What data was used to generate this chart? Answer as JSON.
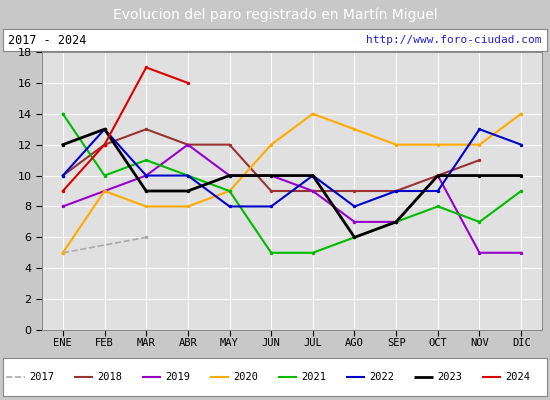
{
  "title": "Evolucion del paro registrado en Martín Miguel",
  "subtitle_left": "2017 - 2024",
  "subtitle_right": "http://www.foro-ciudad.com",
  "months": [
    "ENE",
    "FEB",
    "MAR",
    "ABR",
    "MAY",
    "JUN",
    "JUL",
    "AGO",
    "SEP",
    "OCT",
    "NOV",
    "DIC"
  ],
  "series": {
    "2017": {
      "data": [
        5.0,
        null,
        6.0,
        null,
        null,
        null,
        null,
        null,
        null,
        null,
        null,
        null
      ],
      "color": "#aaaaaa",
      "linewidth": 1.2,
      "linestyle": "--"
    },
    "2018": {
      "data": [
        10.0,
        12.0,
        13.0,
        12.0,
        12.0,
        9.0,
        9.0,
        9.0,
        9.0,
        10.0,
        11.0,
        null
      ],
      "color": "#993333",
      "linewidth": 1.5,
      "linestyle": "-"
    },
    "2019": {
      "data": [
        8.0,
        9.0,
        10.0,
        12.0,
        10.0,
        10.0,
        9.0,
        7.0,
        7.0,
        10.0,
        5.0,
        5.0
      ],
      "color": "#9900cc",
      "linewidth": 1.5,
      "linestyle": "-"
    },
    "2020": {
      "data": [
        5.0,
        9.0,
        8.0,
        8.0,
        9.0,
        12.0,
        14.0,
        13.0,
        12.0,
        12.0,
        12.0,
        14.0
      ],
      "color": "#ffaa00",
      "linewidth": 1.5,
      "linestyle": "-"
    },
    "2021": {
      "data": [
        14.0,
        10.0,
        11.0,
        10.0,
        9.0,
        5.0,
        5.0,
        6.0,
        7.0,
        8.0,
        7.0,
        9.0
      ],
      "color": "#00bb00",
      "linewidth": 1.5,
      "linestyle": "-"
    },
    "2022": {
      "data": [
        10.0,
        13.0,
        10.0,
        10.0,
        8.0,
        8.0,
        10.0,
        8.0,
        9.0,
        9.0,
        13.0,
        12.0
      ],
      "color": "#0000cc",
      "linewidth": 1.5,
      "linestyle": "-"
    },
    "2023": {
      "data": [
        12.0,
        13.0,
        9.0,
        9.0,
        10.0,
        10.0,
        10.0,
        6.0,
        7.0,
        10.0,
        10.0,
        10.0
      ],
      "color": "#000000",
      "linewidth": 2.0,
      "linestyle": "-"
    },
    "2024": {
      "data": [
        9.0,
        12.0,
        17.0,
        16.0,
        null,
        null,
        null,
        null,
        null,
        null,
        null,
        null
      ],
      "color": "#dd0000",
      "linewidth": 1.5,
      "linestyle": "-"
    }
  },
  "ylim": [
    0,
    18
  ],
  "yticks": [
    0,
    2,
    4,
    6,
    8,
    10,
    12,
    14,
    16,
    18
  ],
  "bg_color": "#c8c8c8",
  "plot_bg_color": "#e0e0e0",
  "title_bg_color": "#5585d0",
  "title_color": "#ffffff",
  "header_bg_color": "#ffffff",
  "legend_bg_color": "#ffffff",
  "border_color": "#888888"
}
